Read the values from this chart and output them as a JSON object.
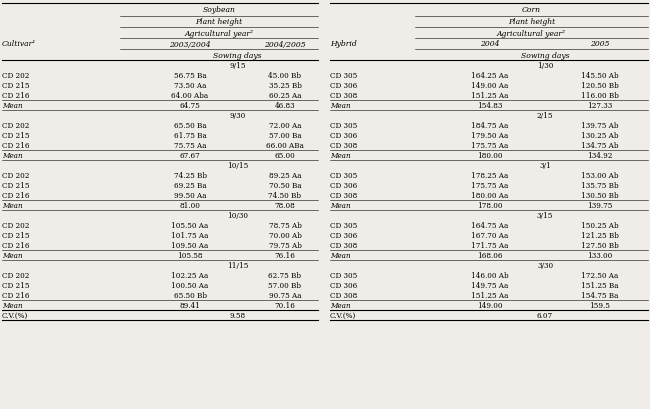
{
  "soybean": {
    "header1": "Soybean",
    "header2": "Plant height",
    "header3": "Agricultural year²",
    "col1": "2003/2004",
    "col2": "2004/2005",
    "row_label": "Cultivar¹",
    "sowing_label": "Sowing days",
    "groups": [
      {
        "sowing": "9/15",
        "rows": [
          [
            "CD 202",
            "56.75 Ba",
            "45.00 Bb"
          ],
          [
            "CD 215",
            "73.50 Aa",
            "35.25 Bb"
          ],
          [
            "CD 216",
            "64.00 Aba",
            "60.25 Aa"
          ]
        ],
        "mean": [
          "Mean",
          "64.75",
          "46.83"
        ]
      },
      {
        "sowing": "9/30",
        "rows": [
          [
            "CD 202",
            "65.50 Ba",
            "72.00 Aa"
          ],
          [
            "CD 215",
            "61.75 Ba",
            "57.00 Ba"
          ],
          [
            "CD 216",
            "75.75 Aa",
            "66.00 ABa"
          ]
        ],
        "mean": [
          "Mean",
          "67.67",
          "65.00"
        ]
      },
      {
        "sowing": "10/15",
        "rows": [
          [
            "CD 202",
            "74.25 Bb",
            "89.25 Aa"
          ],
          [
            "CD 215",
            "69.25 Ba",
            "70.50 Ba"
          ],
          [
            "CD 216",
            "99.50 Aa",
            "74.50 Bb"
          ]
        ],
        "mean": [
          "Mean",
          "81.00",
          "78.08"
        ]
      },
      {
        "sowing": "10/30",
        "rows": [
          [
            "CD 202",
            "105.50 Aa",
            "78.75 Ab"
          ],
          [
            "CD 215",
            "101.75 Aa",
            "70.00 Ab"
          ],
          [
            "CD 216",
            "109.50 Aa",
            "79.75 Ab"
          ]
        ],
        "mean": [
          "Mean",
          "105.58",
          "76.16"
        ]
      },
      {
        "sowing": "11/15",
        "rows": [
          [
            "CD 202",
            "102.25 Aa",
            "62.75 Bb"
          ],
          [
            "CD 215",
            "100.50 Aa",
            "57.00 Bb"
          ],
          [
            "CD 216",
            "65.50 Bb",
            "90.75 Aa"
          ]
        ],
        "mean": [
          "Mean",
          "89.41",
          "70.16"
        ]
      }
    ],
    "cv": "C.V.(%)",
    "cv_val": "9.58"
  },
  "corn": {
    "header1": "Corn",
    "header2": "Plant height",
    "header3": "Agricultural year²",
    "col1": "2004",
    "col2": "2005",
    "row_label": "Hybrid",
    "sowing_label": "Sowing days",
    "groups": [
      {
        "sowing": "1/30",
        "rows": [
          [
            "CD 305",
            "164.25 Aa",
            "145.50 Ab"
          ],
          [
            "CD 306",
            "149.00 Aa",
            "120.50 Bb"
          ],
          [
            "CD 308",
            "151.25 Aa",
            "116.00 Bb"
          ]
        ],
        "mean": [
          "Mean",
          "154.83",
          "127.33"
        ]
      },
      {
        "sowing": "2/15",
        "rows": [
          [
            "CD 305",
            "184.75 Aa",
            "139.75 Ab"
          ],
          [
            "CD 306",
            "179.50 Aa",
            "130.25 Ab"
          ],
          [
            "CD 308",
            "175.75 Aa",
            "134.75 Ab"
          ]
        ],
        "mean": [
          "Mean",
          "180.00",
          "134.92"
        ]
      },
      {
        "sowing": "3/1",
        "rows": [
          [
            "CD 305",
            "178.25 Aa",
            "153.00 Ab"
          ],
          [
            "CD 306",
            "175.75 Aa",
            "135.75 Bb"
          ],
          [
            "CD 308",
            "180.00 Aa",
            "130.50 Bb"
          ]
        ],
        "mean": [
          "Mean",
          "178.00",
          "139.75"
        ]
      },
      {
        "sowing": "3/15",
        "rows": [
          [
            "CD 305",
            "164.75 Aa",
            "150.25 Ab"
          ],
          [
            "CD 306",
            "167.70 Aa",
            "121.25 Bb"
          ],
          [
            "CD 308",
            "171.75 Aa",
            "127.50 Bb"
          ]
        ],
        "mean": [
          "Mean",
          "168.06",
          "133.00"
        ]
      },
      {
        "sowing": "3/30",
        "rows": [
          [
            "CD 305",
            "146.00 Ab",
            "172.50 Aa"
          ],
          [
            "CD 306",
            "149.75 Aa",
            "151.25 Ba"
          ],
          [
            "CD 308",
            "151.25 Aa",
            "154.75 Ba"
          ]
        ],
        "mean": [
          "Mean",
          "149.00",
          "159.5"
        ]
      }
    ],
    "cv": "C.V.(%)",
    "cv_val": "6.07"
  },
  "bg_color": "#f0ede8",
  "fs_header": 5.5,
  "fs_data": 5.2,
  "lw_thick": 0.8,
  "lw_thin": 0.4
}
